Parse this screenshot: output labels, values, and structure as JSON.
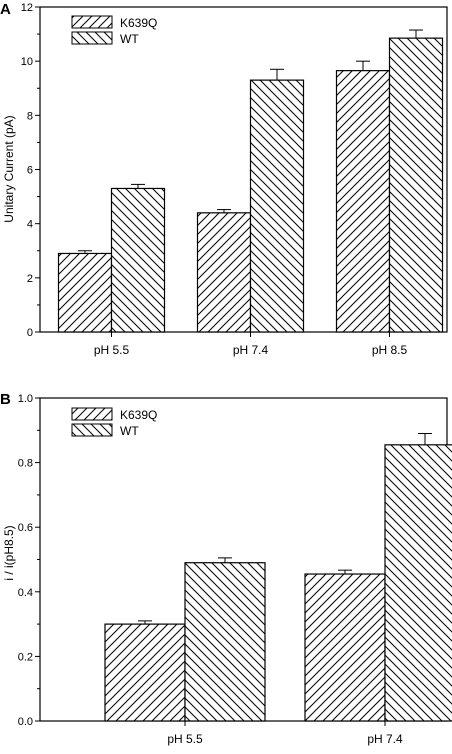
{
  "chart_data": [
    {
      "type": "bar",
      "panel_label": "A",
      "categories": [
        "pH 5.5",
        "pH 7.4",
        "pH 8.5"
      ],
      "series": [
        {
          "name": "K639Q",
          "values": [
            2.9,
            4.4,
            9.65
          ],
          "errors": [
            0.1,
            0.12,
            0.35
          ],
          "hatch": "forward"
        },
        {
          "name": "WT",
          "values": [
            5.3,
            9.3,
            10.85
          ],
          "errors": [
            0.15,
            0.4,
            0.3
          ],
          "hatch": "back"
        }
      ],
      "ylabel": "Unitary Current (pA)",
      "xlabel": "",
      "ylim": [
        0,
        12
      ],
      "yticks": [
        "0",
        "2",
        "4",
        "6",
        "8",
        "10",
        "12"
      ],
      "legend": "top-left",
      "grid": false
    },
    {
      "type": "bar",
      "panel_label": "B",
      "categories": [
        "pH 5.5",
        "pH 7.4"
      ],
      "series": [
        {
          "name": "K639Q",
          "values": [
            0.3,
            0.455
          ],
          "errors": [
            0.01,
            0.012
          ],
          "hatch": "forward"
        },
        {
          "name": "WT",
          "values": [
            0.49,
            0.855
          ],
          "errors": [
            0.015,
            0.035
          ],
          "hatch": "back"
        }
      ],
      "ylabel": "i / i(pH8.5)",
      "xlabel": "",
      "ylim": [
        0,
        1.0
      ],
      "yticks": [
        "0.0",
        "0.2",
        "0.4",
        "0.6",
        "0.8",
        "1.0"
      ],
      "legend": "top-left",
      "grid": false
    }
  ]
}
